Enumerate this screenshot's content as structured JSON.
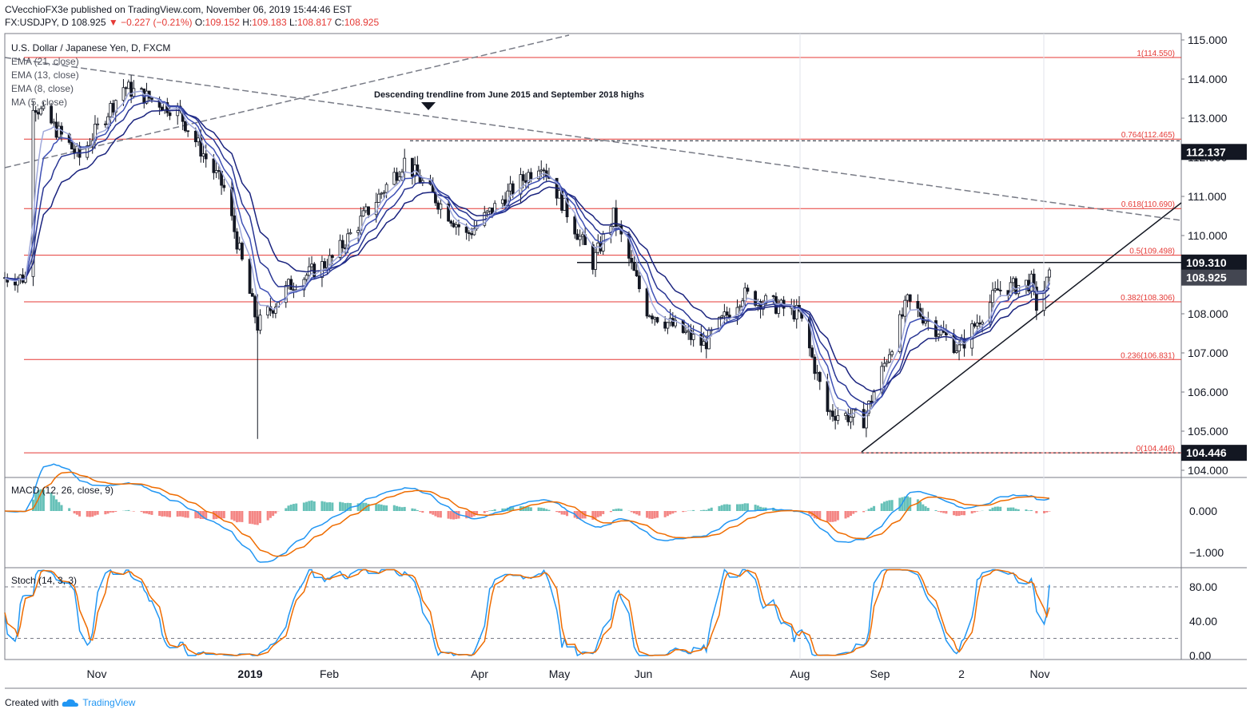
{
  "header": {
    "publisher_line": "CVecchioFX3e published on TradingView.com, November 06, 2019 15:44:46 EST",
    "symbol": "FX:USDJPY, D",
    "last": "108.925",
    "change": "▼ −0.227 (−0.21%)",
    "open_label": "O:",
    "open": "109.152",
    "high_label": "H:",
    "high": "109.183",
    "low_label": "L:",
    "low": "108.817",
    "close_label": "C:",
    "close": "108.925"
  },
  "legend": {
    "title": "U.S. Dollar / Japanese Yen, D, FXCM",
    "lines": [
      "EMA (21, close)",
      "EMA (13, close)",
      "EMA (8, close)",
      "MA (5, close)"
    ]
  },
  "annotation": "Descending trendline from June 2015 and September 2018 highs",
  "footer": {
    "created_with": "Created with",
    "brand": "TradingView"
  },
  "colors": {
    "up": "#26a69a",
    "down": "#131722",
    "fib": "#e53935",
    "ema21": "#1a237e",
    "ema13": "#283593",
    "ema8": "#3f51b5",
    "ma5": "#9fa8da",
    "macd": "#2196f3",
    "signal": "#ef6c00",
    "hist_pos": "#26a69a",
    "hist_neg": "#ef5350",
    "stoch_k": "#2196f3",
    "stoch_d": "#ef6c00"
  },
  "price_axis": {
    "ticks": [
      "115.000",
      "114.000",
      "113.000",
      "112.000",
      "111.000",
      "110.000",
      "109.000",
      "108.000",
      "107.000",
      "106.000",
      "105.000",
      "104.000"
    ],
    "labels": [
      {
        "text": "112.137",
        "value": 112.137,
        "style": "dark"
      },
      {
        "text": "109.310",
        "value": 109.31,
        "style": "dark"
      },
      {
        "text": "108.925",
        "value": 108.925,
        "style": "grey"
      },
      {
        "text": "104.446",
        "value": 104.446,
        "style": "dark"
      }
    ]
  },
  "time_axis": [
    "Nov",
    "2019",
    "Feb",
    "Apr",
    "May",
    "Jun",
    "Aug",
    "Sep",
    "2",
    "Nov"
  ],
  "fib_levels": [
    {
      "label": "1(114.550)",
      "value": 114.55
    },
    {
      "label": "0.764(112.465)",
      "value": 112.465
    },
    {
      "label": "0.618(110.690)",
      "value": 110.69
    },
    {
      "label": "0.5(109.498)",
      "value": 109.498
    },
    {
      "label": "0.382(108.306)",
      "value": 108.306
    },
    {
      "label": "0.236(106.831)",
      "value": 106.831
    },
    {
      "label": "0(104.446)",
      "value": 104.446
    }
  ],
  "macd_panel": {
    "label": "MACD (12, 26, close, 9)",
    "ticks": [
      "0.000",
      "−1.000"
    ]
  },
  "stoch_panel": {
    "label": "Stoch (14, 3, 3)",
    "ticks": [
      "80.00",
      "40.00",
      "0.00"
    ]
  },
  "chart_data": {
    "type": "candlestick",
    "symbol": "USDJPY",
    "ylim": [
      103.8,
      115.2
    ],
    "approx_closes": [
      {
        "date": "2018-10-08",
        "close": 113.4
      },
      {
        "date": "2018-10-26",
        "close": 112.0
      },
      {
        "date": "2018-11-12",
        "close": 113.8
      },
      {
        "date": "2018-12-03",
        "close": 113.2
      },
      {
        "date": "2018-12-21",
        "close": 111.2
      },
      {
        "date": "2019-01-03",
        "close": 107.7
      },
      {
        "date": "2019-01-15",
        "close": 108.7
      },
      {
        "date": "2019-02-01",
        "close": 109.4
      },
      {
        "date": "2019-03-01",
        "close": 111.9
      },
      {
        "date": "2019-03-25",
        "close": 110.0
      },
      {
        "date": "2019-04-23",
        "close": 111.9
      },
      {
        "date": "2019-05-13",
        "close": 109.3
      },
      {
        "date": "2019-05-21",
        "close": 110.5
      },
      {
        "date": "2019-06-03",
        "close": 108.1
      },
      {
        "date": "2019-06-25",
        "close": 107.2
      },
      {
        "date": "2019-07-10",
        "close": 108.5
      },
      {
        "date": "2019-08-01",
        "close": 108.0
      },
      {
        "date": "2019-08-12",
        "close": 105.5
      },
      {
        "date": "2019-08-26",
        "close": 105.3
      },
      {
        "date": "2019-09-12",
        "close": 108.3
      },
      {
        "date": "2019-10-02",
        "close": 107.1
      },
      {
        "date": "2019-10-17",
        "close": 108.6
      },
      {
        "date": "2019-10-30",
        "close": 108.8
      },
      {
        "date": "2019-11-01",
        "close": 108.2
      },
      {
        "date": "2019-11-06",
        "close": 108.925
      }
    ]
  }
}
